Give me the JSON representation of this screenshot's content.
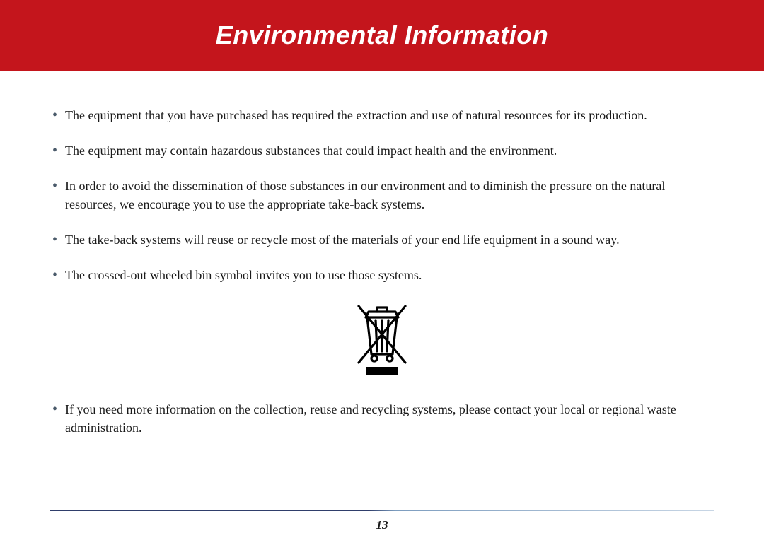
{
  "header": {
    "title": "Environmental Information",
    "background_color": "#c4151c",
    "text_color": "#ffffff",
    "title_fontsize": 36
  },
  "body": {
    "text_color": "#1a1a1a",
    "fontsize": 18,
    "bullet_color": "#4a5a6a",
    "bullets": [
      "The equipment that you have purchased has required the extraction and use of natural resources for its production.",
      "The equipment may contain hazardous substances that could impact health and the environment.",
      "In order to avoid the dissemination of those substances in our environment and to diminish the pressure on the natural resources, we encourage you to use the appropriate take-back systems.",
      "The take-back systems will reuse or recycle most of the materials of your end life equipment in a sound way.",
      "The crossed-out wheeled bin symbol invites you to use those systems."
    ],
    "bullets_after_symbol": [
      "If you need more information on the collection, reuse and recycling systems, please contact your local or regional waste administration."
    ]
  },
  "symbol": {
    "name": "weee-crossed-bin-icon",
    "stroke_color": "#000000",
    "fill_bar_color": "#000000"
  },
  "footer": {
    "page_number": "13",
    "rule_gradient_from": "#2f3e6b",
    "rule_gradient_to": "#c8d6e5"
  }
}
